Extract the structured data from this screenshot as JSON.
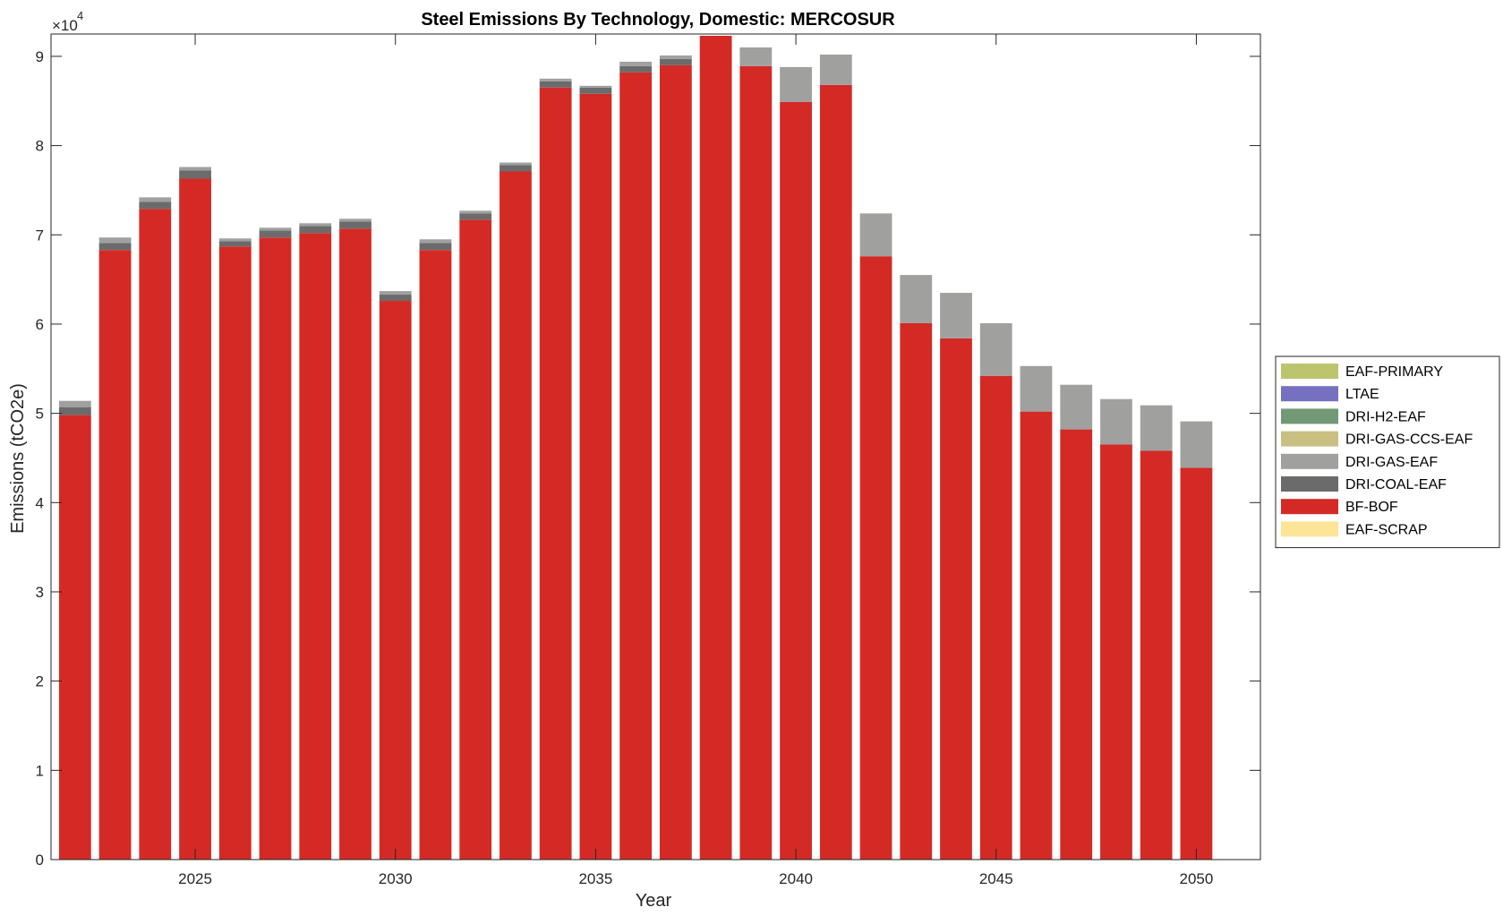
{
  "chart_data": {
    "type": "bar",
    "stacked": true,
    "title": "Steel Emissions By Technology, Domestic: MERCOSUR",
    "xlabel": "Year",
    "ylabel": "Emissions (tCO2e)",
    "y_exponent_base": "×10",
    "y_exponent": "4",
    "xlim": [
      2021.4,
      2051.6
    ],
    "ylim": [
      0,
      9.25
    ],
    "y_scale": 10000,
    "xticks": [
      2025,
      2030,
      2035,
      2040,
      2045,
      2050
    ],
    "yticks": [
      0,
      1,
      2,
      3,
      4,
      5,
      6,
      7,
      8,
      9
    ],
    "grid": false,
    "legend_position": "right",
    "x": [
      2022,
      2023,
      2024,
      2025,
      2026,
      2027,
      2028,
      2029,
      2030,
      2031,
      2032,
      2033,
      2034,
      2035,
      2036,
      2037,
      2038,
      2039,
      2040,
      2041,
      2042,
      2043,
      2044,
      2045,
      2046,
      2047,
      2048,
      2049,
      2050
    ],
    "series": [
      {
        "name": "EAF-SCRAP",
        "color": "#fde597",
        "values": [
          0,
          0,
          0,
          0,
          0,
          0,
          0,
          0,
          0,
          0,
          0,
          0,
          0,
          0,
          0,
          0,
          0,
          0,
          0,
          0,
          0,
          0,
          0,
          0,
          0,
          0,
          0,
          0,
          0
        ]
      },
      {
        "name": "BF-BOF",
        "color": "#d42a25",
        "values": [
          4.98,
          6.83,
          7.29,
          7.63,
          6.87,
          6.97,
          7.02,
          7.07,
          6.26,
          6.83,
          7.17,
          7.71,
          8.65,
          8.58,
          8.82,
          8.9,
          9.23,
          8.89,
          8.49,
          8.68,
          6.76,
          6.01,
          5.84,
          5.42,
          5.02,
          4.82,
          4.65,
          4.58,
          4.39
        ]
      },
      {
        "name": "DRI-COAL-EAF",
        "color": "#6b6b6b",
        "values": [
          0.09,
          0.08,
          0.08,
          0.09,
          0.06,
          0.08,
          0.08,
          0.08,
          0.07,
          0.08,
          0.07,
          0.07,
          0.07,
          0.07,
          0.07,
          0.07,
          0.0,
          0.0,
          0.0,
          0.0,
          0.0,
          0.0,
          0.0,
          0.0,
          0.0,
          0.0,
          0.0,
          0.0,
          0.0
        ]
      },
      {
        "name": "DRI-GAS-EAF",
        "color": "#a0a09f",
        "values": [
          0.07,
          0.06,
          0.05,
          0.04,
          0.03,
          0.03,
          0.03,
          0.03,
          0.04,
          0.04,
          0.03,
          0.03,
          0.03,
          0.02,
          0.05,
          0.04,
          0.0,
          0.21,
          0.39,
          0.34,
          0.48,
          0.54,
          0.51,
          0.59,
          0.51,
          0.5,
          0.51,
          0.51,
          0.52
        ]
      },
      {
        "name": "DRI-GAS-CCS-EAF",
        "color": "#c9bf82",
        "values": [
          0,
          0,
          0,
          0,
          0,
          0,
          0,
          0,
          0,
          0,
          0,
          0,
          0,
          0,
          0,
          0,
          0,
          0,
          0,
          0,
          0,
          0,
          0,
          0,
          0,
          0,
          0,
          0,
          0
        ]
      },
      {
        "name": "DRI-H2-EAF",
        "color": "#729876",
        "values": [
          0,
          0,
          0,
          0,
          0,
          0,
          0,
          0,
          0,
          0,
          0,
          0,
          0,
          0,
          0,
          0,
          0,
          0,
          0,
          0,
          0,
          0,
          0,
          0,
          0,
          0,
          0,
          0,
          0
        ]
      },
      {
        "name": "LTAE",
        "color": "#7570c0",
        "values": [
          0,
          0,
          0,
          0,
          0,
          0,
          0,
          0,
          0,
          0,
          0,
          0,
          0,
          0,
          0,
          0,
          0,
          0,
          0,
          0,
          0,
          0,
          0,
          0,
          0,
          0,
          0,
          0,
          0
        ]
      },
      {
        "name": "EAF-PRIMARY",
        "color": "#bcc56e",
        "values": [
          0,
          0,
          0,
          0,
          0,
          0,
          0,
          0,
          0,
          0,
          0,
          0,
          0,
          0,
          0,
          0,
          0,
          0,
          0,
          0,
          0,
          0,
          0,
          0,
          0,
          0,
          0,
          0,
          0
        ]
      }
    ]
  }
}
